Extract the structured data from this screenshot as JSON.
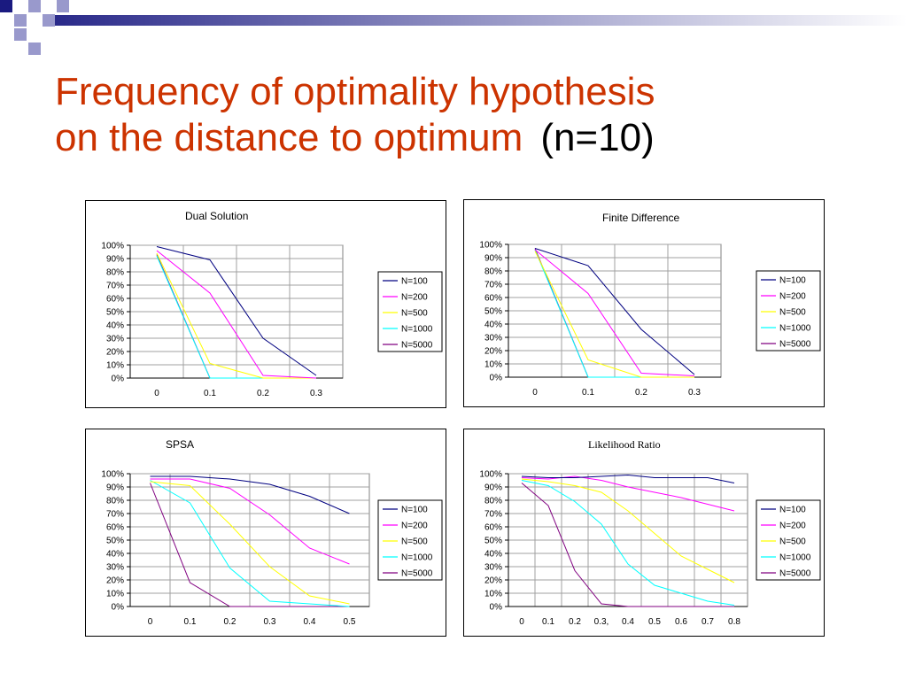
{
  "slide": {
    "title_line1": "Frequency of optimality hypothesis",
    "title_line2": "on the distance to optimum",
    "title_suffix": "(n=10)",
    "colors": {
      "title": "#cc3300",
      "suffix": "#000000",
      "deco_dark": "#1a1a80",
      "deco_light": "#9999cc"
    }
  },
  "chart_data": [
    {
      "type": "line",
      "title": "Dual Solution",
      "x": [
        "0",
        "0.1",
        "0.2",
        "0.3"
      ],
      "ylim": [
        0,
        100
      ],
      "yticks": [
        "0%",
        "10%",
        "20%",
        "30%",
        "40%",
        "50%",
        "60%",
        "70%",
        "80%",
        "90%",
        "100%"
      ],
      "grid": true,
      "legend": "right",
      "series": [
        {
          "name": "N=100",
          "color": "#000080",
          "values": [
            99,
            89,
            30,
            2
          ]
        },
        {
          "name": "N=200",
          "color": "#ff00ff",
          "values": [
            96,
            64,
            2,
            0
          ]
        },
        {
          "name": "N=500",
          "color": "#ffff00",
          "values": [
            94,
            11,
            0,
            0
          ]
        },
        {
          "name": "N=1000",
          "color": "#00ffff",
          "values": [
            92,
            0,
            0,
            0
          ]
        },
        {
          "name": "N=5000",
          "color": "#800080",
          "values": [
            93,
            0,
            0,
            0
          ]
        }
      ]
    },
    {
      "type": "line",
      "title": "Finite Difference",
      "x": [
        "0",
        "0.1",
        "0.2",
        "0.3"
      ],
      "ylim": [
        0,
        100
      ],
      "yticks": [
        "0%",
        "10%",
        "20%",
        "30%",
        "40%",
        "50%",
        "60%",
        "70%",
        "80%",
        "90%",
        "100%"
      ],
      "grid": true,
      "legend": "right",
      "series": [
        {
          "name": "N=100",
          "color": "#000080",
          "values": [
            97,
            84,
            36,
            2
          ]
        },
        {
          "name": "N=200",
          "color": "#ff00ff",
          "values": [
            96,
            63,
            3,
            1
          ]
        },
        {
          "name": "N=500",
          "color": "#ffff00",
          "values": [
            95,
            13,
            0,
            0
          ]
        },
        {
          "name": "N=1000",
          "color": "#00ffff",
          "values": [
            96,
            0,
            0,
            0
          ]
        },
        {
          "name": "N=5000",
          "color": "#800080",
          "values": [
            97,
            0,
            0,
            0
          ]
        }
      ]
    },
    {
      "type": "line",
      "title": "SPSA",
      "x": [
        "0",
        "0.1",
        "0.2",
        "0.3",
        "0.4",
        "0.5"
      ],
      "ylim": [
        0,
        100
      ],
      "yticks": [
        "0%",
        "10%",
        "20%",
        "30%",
        "40%",
        "50%",
        "60%",
        "70%",
        "80%",
        "90%",
        "100%"
      ],
      "grid": true,
      "legend": "right",
      "series": [
        {
          "name": "N=100",
          "color": "#000080",
          "values": [
            98,
            98,
            96,
            92,
            83,
            70
          ]
        },
        {
          "name": "N=200",
          "color": "#ff00ff",
          "values": [
            96,
            96,
            89,
            69,
            44,
            32
          ]
        },
        {
          "name": "N=500",
          "color": "#ffff00",
          "values": [
            94,
            91,
            62,
            30,
            8,
            2
          ]
        },
        {
          "name": "N=1000",
          "color": "#00ffff",
          "values": [
            95,
            78,
            29,
            4,
            2,
            0
          ]
        },
        {
          "name": "N=5000",
          "color": "#800080",
          "values": [
            93,
            18,
            0,
            0,
            0,
            0
          ]
        }
      ]
    },
    {
      "type": "line",
      "title": "Likelihood Ratio",
      "x": [
        "0",
        "0.1",
        "0.2",
        "0.3,",
        "0.4",
        "0.5",
        "0.6",
        "0.7",
        "0.8"
      ],
      "ylim": [
        0,
        100
      ],
      "yticks": [
        "0%",
        "10%",
        "20%",
        "30%",
        "40%",
        "50%",
        "60%",
        "70%",
        "80%",
        "90%",
        "100%"
      ],
      "grid": true,
      "legend": "right",
      "series": [
        {
          "name": "N=100",
          "color": "#000080",
          "values": [
            98,
            97,
            97,
            98,
            99,
            97,
            97,
            97,
            93
          ]
        },
        {
          "name": "N=200",
          "color": "#ff00ff",
          "values": [
            97,
            96,
            98,
            95,
            90,
            86,
            82,
            77,
            72
          ]
        },
        {
          "name": "N=500",
          "color": "#ffff00",
          "values": [
            96,
            94,
            91,
            86,
            72,
            55,
            38,
            28,
            18
          ]
        },
        {
          "name": "N=1000",
          "color": "#00ffff",
          "values": [
            95,
            91,
            79,
            62,
            32,
            16,
            10,
            4,
            1
          ]
        },
        {
          "name": "N=5000",
          "color": "#800080",
          "values": [
            93,
            76,
            27,
            2,
            0,
            0,
            0,
            0,
            0
          ]
        }
      ]
    }
  ]
}
